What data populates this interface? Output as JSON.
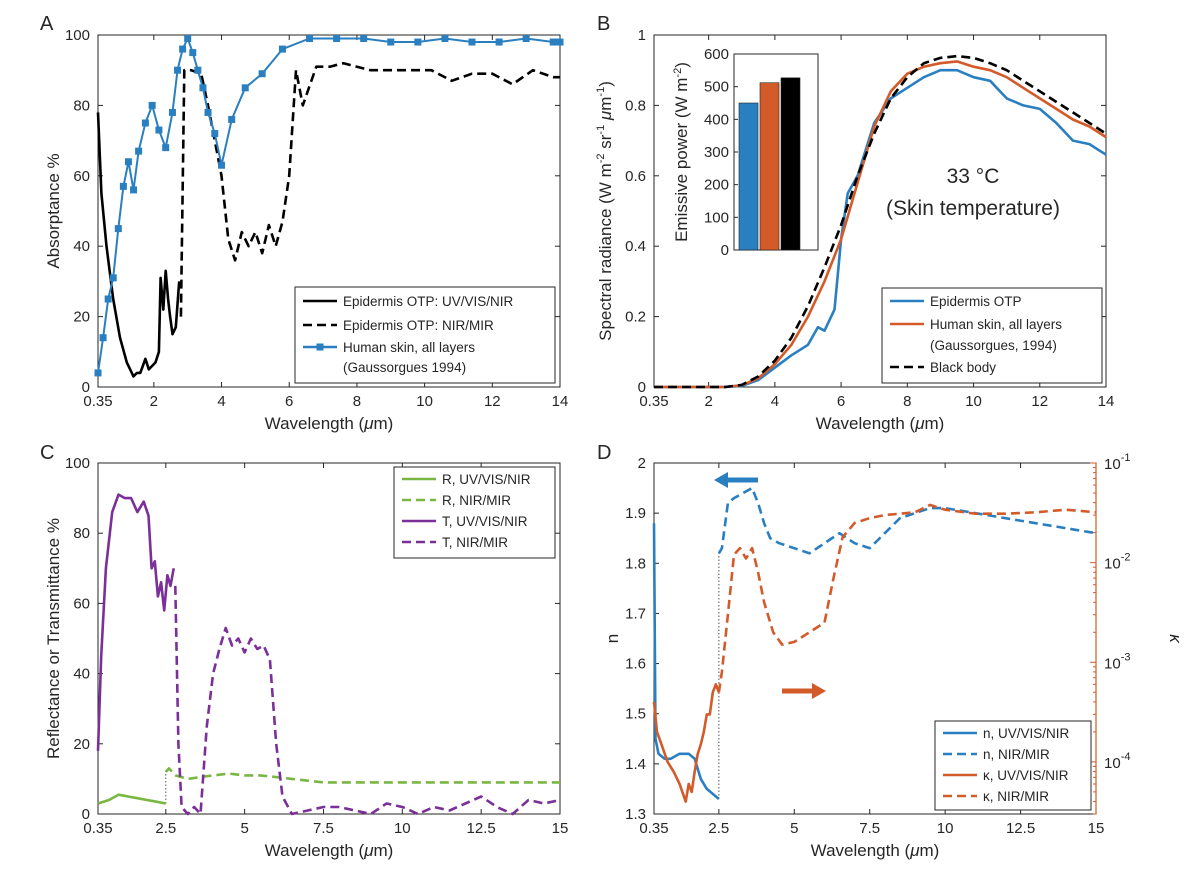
{
  "colors": {
    "blue": "#2a7fc1",
    "orange": "#d35b2a",
    "green": "#79b642",
    "purple": "#7b2f98",
    "black": "#000000",
    "axis": "#262626"
  },
  "chart_data": [
    {
      "panel": "A",
      "type": "line",
      "xlabel": "Wavelength (μm)",
      "ylabel": "Absorptance %",
      "xlim": [
        0.35,
        14
      ],
      "ylim": [
        0,
        100
      ],
      "xticks": [
        0.35,
        2,
        4,
        6,
        8,
        10,
        12,
        14
      ],
      "xtick_labels": [
        "0.35",
        "2",
        "4",
        "6",
        "8",
        "10",
        "12",
        "14"
      ],
      "yticks": [
        0,
        20,
        40,
        60,
        80,
        100
      ],
      "legend": "bottom-right",
      "legend_labels": [
        "Epidermis OTP: UV/VIS/NIR",
        "Epidermis OTP: NIR/MIR",
        "Human skin, all layers",
        "(Gaussorgues 1994)"
      ],
      "series": [
        {
          "name": "Epidermis OTP: UV/VIS/NIR",
          "color": "black",
          "dash": "solid",
          "x": [
            0.35,
            0.45,
            0.6,
            0.8,
            1.0,
            1.2,
            1.4,
            1.5,
            1.6,
            1.75,
            1.85,
            1.95,
            2.05,
            2.15,
            2.2,
            2.28,
            2.35,
            2.42,
            2.48,
            2.55,
            2.65,
            2.75
          ],
          "y": [
            78,
            55,
            40,
            25,
            14,
            7,
            3,
            4,
            4,
            8,
            5,
            6,
            7,
            10,
            31,
            22,
            33,
            25,
            20,
            15,
            17,
            30
          ]
        },
        {
          "name": "Epidermis OTP: NIR/MIR",
          "color": "black",
          "dash": "dashed",
          "x": [
            2.8,
            2.9,
            3.1,
            3.4,
            3.6,
            3.8,
            4.0,
            4.2,
            4.4,
            4.6,
            4.8,
            5.0,
            5.2,
            5.4,
            5.6,
            5.8,
            6.0,
            6.2,
            6.4,
            6.8,
            7.2,
            7.6,
            8.0,
            8.4,
            9.0,
            9.6,
            10.2,
            10.8,
            11.4,
            12.0,
            12.6,
            13.2,
            13.8,
            14.0
          ],
          "y": [
            20,
            90,
            90,
            89,
            80,
            70,
            60,
            42,
            36,
            44,
            40,
            44,
            38,
            46,
            40,
            47,
            60,
            90,
            80,
            91,
            91,
            92,
            91,
            90,
            90,
            90,
            90,
            87,
            89,
            89,
            86,
            90,
            88,
            88
          ]
        },
        {
          "name": "Human skin, all layers",
          "color": "blue",
          "dash": "solid",
          "marker": "square",
          "x": [
            0.35,
            0.5,
            0.65,
            0.8,
            0.95,
            1.1,
            1.25,
            1.4,
            1.55,
            1.75,
            1.95,
            2.15,
            2.35,
            2.55,
            2.7,
            2.85,
            3.0,
            3.15,
            3.3,
            3.45,
            3.6,
            3.8,
            4.0,
            4.3,
            4.7,
            5.2,
            5.8,
            6.6,
            7.4,
            8.2,
            9.0,
            9.8,
            10.6,
            11.4,
            12.2,
            13.0,
            13.8,
            14.0
          ],
          "y": [
            4,
            14,
            25,
            31,
            45,
            57,
            64,
            56,
            67,
            75,
            80,
            73,
            68,
            78,
            90,
            96,
            99,
            95,
            90,
            85,
            78,
            72,
            63,
            76,
            85,
            89,
            96,
            99,
            99,
            99,
            98,
            98,
            99,
            98,
            98,
            99,
            98,
            98
          ]
        }
      ]
    },
    {
      "panel": "B",
      "type": "line",
      "xlabel": "Wavelength (μm)",
      "ylabel": "Spectral radiance (W m⁻² sr⁻¹ μm⁻¹)",
      "xlim": [
        0.35,
        14
      ],
      "ylim": [
        0,
        1
      ],
      "xticks": [
        0.35,
        2,
        4,
        6,
        8,
        10,
        12,
        14
      ],
      "xtick_labels": [
        "0.35",
        "2",
        "4",
        "6",
        "8",
        "10",
        "12",
        "14"
      ],
      "yticks": [
        0,
        0.2,
        0.4,
        0.6,
        0.8,
        1
      ],
      "ytick_labels": [
        "0",
        "0.2",
        "0.4",
        "0.6",
        "0.8",
        "1"
      ],
      "annotation": [
        "33 °C",
        "(Skin temperature)"
      ],
      "legend": "bottom-right",
      "legend_labels": [
        "Epidermis OTP",
        "Human skin, all layers",
        "(Gaussorgues, 1994)",
        "Black body"
      ],
      "series": [
        {
          "name": "Epidermis OTP",
          "color": "blue",
          "dash": "solid",
          "x": [
            0.35,
            2.5,
            3.0,
            3.5,
            4.0,
            4.5,
            5.0,
            5.3,
            5.5,
            5.8,
            6.0,
            6.2,
            6.5,
            7.0,
            7.5,
            8.0,
            8.5,
            9.0,
            9.5,
            10.0,
            10.5,
            11.0,
            11.5,
            12.0,
            12.5,
            13.0,
            13.5,
            14.0
          ],
          "y": [
            0,
            0,
            0.003,
            0.02,
            0.055,
            0.09,
            0.12,
            0.17,
            0.16,
            0.22,
            0.42,
            0.55,
            0.6,
            0.75,
            0.82,
            0.85,
            0.88,
            0.9,
            0.9,
            0.88,
            0.87,
            0.82,
            0.8,
            0.79,
            0.75,
            0.7,
            0.69,
            0.66
          ]
        },
        {
          "name": "Human skin, all layers",
          "color": "orange",
          "dash": "solid",
          "x": [
            0.35,
            2.5,
            3.0,
            3.5,
            4.0,
            4.5,
            5.0,
            5.5,
            6.0,
            6.5,
            7.0,
            7.5,
            8.0,
            8.5,
            9.0,
            9.5,
            10.0,
            10.5,
            11.0,
            11.5,
            12.0,
            12.5,
            13.0,
            13.5,
            14.0
          ],
          "y": [
            0,
            0,
            0.005,
            0.025,
            0.065,
            0.12,
            0.2,
            0.3,
            0.42,
            0.58,
            0.74,
            0.84,
            0.89,
            0.91,
            0.92,
            0.925,
            0.91,
            0.9,
            0.88,
            0.85,
            0.82,
            0.79,
            0.76,
            0.74,
            0.71
          ]
        },
        {
          "name": "Black body",
          "color": "black",
          "dash": "dashed",
          "x": [
            0.35,
            2.5,
            3.0,
            3.5,
            4.0,
            4.5,
            5.0,
            5.5,
            6.0,
            6.5,
            7.0,
            7.5,
            8.0,
            8.5,
            9.0,
            9.5,
            10.0,
            10.5,
            11.0,
            11.5,
            12.0,
            12.5,
            13.0,
            13.5,
            14.0
          ],
          "y": [
            0,
            0,
            0.006,
            0.03,
            0.075,
            0.14,
            0.23,
            0.34,
            0.46,
            0.6,
            0.72,
            0.82,
            0.88,
            0.92,
            0.935,
            0.94,
            0.935,
            0.92,
            0.9,
            0.87,
            0.84,
            0.81,
            0.78,
            0.75,
            0.72
          ]
        }
      ],
      "inset": {
        "type": "bar",
        "ylabel": "Emissive power (W m⁻²)",
        "ylim": [
          0,
          600
        ],
        "yticks": [
          0,
          100,
          200,
          300,
          400,
          500,
          600
        ],
        "values": [
          450,
          512,
          527
        ],
        "bar_colors": [
          "blue",
          "orange",
          "black"
        ]
      }
    },
    {
      "panel": "C",
      "type": "line",
      "xlabel": "Wavelength (μm)",
      "ylabel": "Reflectance or Transmittance %",
      "xlim": [
        0.35,
        15
      ],
      "ylim": [
        0,
        100
      ],
      "xticks": [
        0.35,
        2.5,
        5,
        7.5,
        10,
        12.5,
        15
      ],
      "xtick_labels": [
        "0.35",
        "2.5",
        "5",
        "7.5",
        "10",
        "12.5",
        "15"
      ],
      "yticks": [
        0,
        20,
        40,
        60,
        80,
        100
      ],
      "legend": "top-right",
      "legend_labels": [
        "R, UV/VIS/NIR",
        "R, NIR/MIR",
        "T, UV/VIS/NIR",
        "T, NIR/MIR"
      ],
      "series": [
        {
          "name": "R, UV/VIS/NIR",
          "color": "green",
          "dash": "solid",
          "x": [
            0.35,
            0.7,
            1.0,
            1.3,
            1.6,
            1.9,
            2.2,
            2.5
          ],
          "y": [
            3,
            4,
            5.5,
            5,
            4.5,
            4,
            3.5,
            3
          ]
        },
        {
          "name": "R, NIR/MIR",
          "color": "green",
          "dash": "dashed",
          "x": [
            2.5,
            2.6,
            2.8,
            3.2,
            3.6,
            4.0,
            4.5,
            5.0,
            5.5,
            6.0,
            6.5,
            7.0,
            7.5,
            8.0,
            9.0,
            10.0,
            11.0,
            12.0,
            13.0,
            14.0,
            15.0
          ],
          "y": [
            12,
            13,
            11,
            10,
            10.5,
            11,
            11.5,
            11,
            11,
            10.5,
            10,
            9.5,
            9,
            9,
            9,
            9,
            9,
            9,
            9,
            9,
            9
          ]
        },
        {
          "name": "T, UV/VIS/NIR",
          "color": "purple",
          "dash": "solid",
          "x": [
            0.35,
            0.45,
            0.6,
            0.8,
            1.0,
            1.2,
            1.4,
            1.6,
            1.8,
            1.95,
            2.05,
            2.15,
            2.25,
            2.35,
            2.45,
            2.55,
            2.65,
            2.75
          ],
          "y": [
            18,
            45,
            70,
            86,
            91,
            90,
            90,
            86,
            89,
            85,
            70,
            72,
            62,
            66,
            58,
            68,
            65,
            70
          ]
        },
        {
          "name": "T, NIR/MIR",
          "color": "purple",
          "dash": "dashed",
          "x": [
            2.8,
            2.9,
            3.0,
            3.2,
            3.4,
            3.6,
            3.8,
            4.0,
            4.2,
            4.4,
            4.6,
            4.8,
            5.0,
            5.2,
            5.4,
            5.6,
            5.8,
            6.0,
            6.2,
            6.5,
            7.0,
            7.5,
            8.0,
            8.5,
            9.0,
            9.5,
            10.0,
            10.5,
            11.0,
            11.5,
            12.0,
            12.5,
            13.0,
            13.5,
            14.0,
            14.5,
            15.0
          ],
          "y": [
            65,
            20,
            2,
            0,
            2,
            0,
            25,
            40,
            47,
            53,
            48,
            50,
            46,
            50,
            47,
            48,
            44,
            20,
            5,
            0,
            1,
            2,
            2,
            1,
            0,
            3,
            2,
            0,
            2,
            1,
            3,
            5,
            2,
            0,
            4,
            3,
            4
          ]
        }
      ]
    },
    {
      "panel": "D",
      "type": "line",
      "xlabel": "Wavelength (μm)",
      "ylabel": "n",
      "y2label": "κ",
      "xlim": [
        0.35,
        15
      ],
      "ylim": [
        1.3,
        2
      ],
      "y2lim": [
        3e-05,
        0.1
      ],
      "y2scale": "log",
      "xticks": [
        0.35,
        2.5,
        5,
        7.5,
        10,
        12.5,
        15
      ],
      "xtick_labels": [
        "0.35",
        "2.5",
        "5",
        "7.5",
        "10",
        "12.5",
        "15"
      ],
      "yticks": [
        1.3,
        1.4,
        1.5,
        1.6,
        1.7,
        1.8,
        1.9,
        2
      ],
      "ytick_labels": [
        "1.3",
        "1.4",
        "1.5",
        "1.6",
        "1.7",
        "1.8",
        "1.9",
        "2"
      ],
      "y2ticks": [
        0.0001,
        0.001,
        0.01,
        0.1
      ],
      "y2tick_labels": [
        "10-4",
        "10-3",
        "10-2",
        "10-1"
      ],
      "legend": "bottom-right",
      "legend_labels": [
        "n, UV/VIS/NIR",
        "n, NIR/MIR",
        "κ, UV/VIS/NIR",
        "κ, NIR/MIR"
      ],
      "series": [
        {
          "name": "n, UV/VIS/NIR",
          "color": "blue",
          "dash": "solid",
          "axis": "left",
          "x": [
            0.35,
            0.4,
            0.5,
            0.7,
            0.9,
            1.2,
            1.5,
            1.7,
            1.9,
            2.1,
            2.3,
            2.5
          ],
          "y": [
            1.88,
            1.45,
            1.42,
            1.41,
            1.41,
            1.42,
            1.42,
            1.41,
            1.37,
            1.35,
            1.34,
            1.33
          ]
        },
        {
          "name": "n, NIR/MIR",
          "color": "blue",
          "dash": "dashed",
          "axis": "left",
          "x": [
            2.5,
            2.6,
            2.8,
            3.0,
            3.3,
            3.6,
            3.8,
            4.0,
            4.2,
            4.5,
            5.0,
            5.5,
            6.0,
            6.5,
            7.0,
            7.5,
            8.0,
            8.5,
            9.0,
            9.5,
            10.0,
            11.0,
            12.0,
            13.0,
            14.0,
            15.0
          ],
          "y": [
            1.82,
            1.83,
            1.92,
            1.93,
            1.94,
            1.95,
            1.92,
            1.88,
            1.85,
            1.84,
            1.83,
            1.82,
            1.84,
            1.86,
            1.84,
            1.83,
            1.86,
            1.89,
            1.9,
            1.91,
            1.91,
            1.9,
            1.89,
            1.88,
            1.87,
            1.86
          ]
        },
        {
          "name": "κ, UV/VIS/NIR",
          "color": "orange",
          "dash": "solid",
          "axis": "right",
          "x": [
            0.35,
            0.45,
            0.6,
            0.8,
            1.0,
            1.2,
            1.4,
            1.5,
            1.6,
            1.7,
            1.8,
            1.9,
            2.0,
            2.1,
            2.2,
            2.3,
            2.4,
            2.5
          ],
          "y": [
            0.0004,
            0.0002,
            0.00015,
            0.0001,
            8e-05,
            6e-05,
            4e-05,
            6e-05,
            5e-05,
            8e-05,
            0.00012,
            0.00015,
            0.0002,
            0.0003,
            0.0003,
            0.0005,
            0.0006,
            0.0005
          ]
        },
        {
          "name": "κ, NIR/MIR",
          "color": "orange",
          "dash": "dashed",
          "axis": "right",
          "x": [
            2.5,
            2.6,
            2.8,
            3.0,
            3.2,
            3.4,
            3.6,
            3.8,
            4.0,
            4.3,
            4.6,
            5.0,
            5.5,
            6.0,
            6.3,
            6.6,
            7.0,
            7.5,
            8.0,
            8.5,
            9.0,
            9.5,
            10.0,
            11.0,
            12.0,
            13.0,
            14.0,
            15.0
          ],
          "y": [
            0.0005,
            0.0008,
            0.003,
            0.012,
            0.014,
            0.011,
            0.014,
            0.008,
            0.004,
            0.002,
            0.0015,
            0.0016,
            0.002,
            0.0025,
            0.007,
            0.018,
            0.025,
            0.028,
            0.03,
            0.031,
            0.032,
            0.038,
            0.034,
            0.031,
            0.031,
            0.032,
            0.034,
            0.032
          ]
        }
      ]
    }
  ]
}
